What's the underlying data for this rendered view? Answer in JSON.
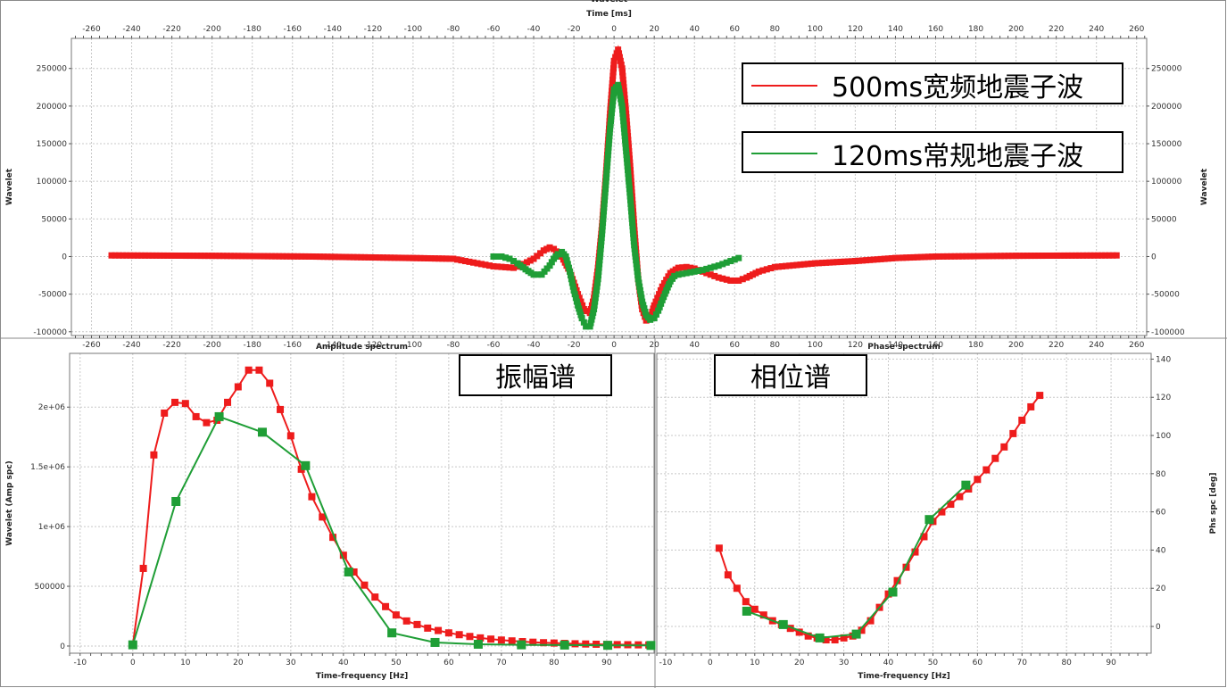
{
  "colors": {
    "red": "#ee1c1c",
    "green": "#1f9e36",
    "grid": "#c8c8c8",
    "frame": "#8a8a8a"
  },
  "chart_data": [
    {
      "type": "line",
      "title": "Wavelet",
      "xlabel": "Time [ms]",
      "ylabel": "Wavelet",
      "ylabel_right": "Wavelet",
      "xlim": [
        -270,
        265
      ],
      "ylim": [
        -105000,
        290000
      ],
      "xticks": [
        -260,
        -240,
        -220,
        -200,
        -180,
        -160,
        -140,
        -120,
        -100,
        -80,
        -60,
        -40,
        -20,
        0,
        20,
        40,
        60,
        80,
        100,
        120,
        140,
        160,
        180,
        200,
        220,
        240,
        260
      ],
      "yticks": [
        -100000,
        -50000,
        0,
        50000,
        100000,
        150000,
        200000,
        250000
      ],
      "grid": true,
      "legend_position": "top-right",
      "legend": [
        "500ms宽频地震子波",
        "120ms常规地震子波"
      ],
      "series": [
        {
          "name": "500ms宽频地震子波",
          "color": "red",
          "points": [
            [
              -250,
              1500
            ],
            [
              -200,
              1000
            ],
            [
              -150,
              0
            ],
            [
              -100,
              -2000
            ],
            [
              -80,
              -3000
            ],
            [
              -70,
              -8000
            ],
            [
              -60,
              -13000
            ],
            [
              -50,
              -15000
            ],
            [
              -45,
              -10000
            ],
            [
              -40,
              -3000
            ],
            [
              -35,
              8000
            ],
            [
              -32,
              12000
            ],
            [
              -30,
              10000
            ],
            [
              -26,
              0
            ],
            [
              -22,
              -20000
            ],
            [
              -18,
              -50000
            ],
            [
              -15,
              -70000
            ],
            [
              -12,
              -75000
            ],
            [
              -10,
              -55000
            ],
            [
              -8,
              -15000
            ],
            [
              -6,
              40000
            ],
            [
              -4,
              110000
            ],
            [
              -2,
              190000
            ],
            [
              0,
              260000
            ],
            [
              2,
              275000
            ],
            [
              4,
              250000
            ],
            [
              6,
              190000
            ],
            [
              8,
              120000
            ],
            [
              10,
              40000
            ],
            [
              12,
              -30000
            ],
            [
              14,
              -70000
            ],
            [
              16,
              -85000
            ],
            [
              18,
              -82000
            ],
            [
              20,
              -65000
            ],
            [
              24,
              -40000
            ],
            [
              28,
              -22000
            ],
            [
              32,
              -15000
            ],
            [
              36,
              -14000
            ],
            [
              40,
              -16000
            ],
            [
              46,
              -22000
            ],
            [
              52,
              -28000
            ],
            [
              58,
              -32000
            ],
            [
              62,
              -32000
            ],
            [
              66,
              -28000
            ],
            [
              72,
              -20000
            ],
            [
              80,
              -14000
            ],
            [
              100,
              -9000
            ],
            [
              120,
              -6000
            ],
            [
              140,
              -2000
            ],
            [
              160,
              0
            ],
            [
              200,
              1000
            ],
            [
              250,
              1500
            ]
          ]
        },
        {
          "name": "120ms常规地震子波",
          "color": "green",
          "points": [
            [
              -60,
              0
            ],
            [
              -56,
              0
            ],
            [
              -52,
              -3000
            ],
            [
              -48,
              -9000
            ],
            [
              -44,
              -17000
            ],
            [
              -40,
              -24000
            ],
            [
              -36,
              -24000
            ],
            [
              -32,
              -12000
            ],
            [
              -30,
              -3000
            ],
            [
              -28,
              3000
            ],
            [
              -26,
              6000
            ],
            [
              -24,
              0
            ],
            [
              -22,
              -20000
            ],
            [
              -20,
              -45000
            ],
            [
              -18,
              -65000
            ],
            [
              -16,
              -82000
            ],
            [
              -14,
              -93000
            ],
            [
              -12,
              -93000
            ],
            [
              -10,
              -70000
            ],
            [
              -8,
              -30000
            ],
            [
              -6,
              30000
            ],
            [
              -4,
              100000
            ],
            [
              -2,
              170000
            ],
            [
              0,
              222000
            ],
            [
              2,
              228000
            ],
            [
              4,
              200000
            ],
            [
              6,
              140000
            ],
            [
              8,
              80000
            ],
            [
              10,
              15000
            ],
            [
              12,
              -30000
            ],
            [
              14,
              -60000
            ],
            [
              16,
              -78000
            ],
            [
              18,
              -84000
            ],
            [
              20,
              -82000
            ],
            [
              22,
              -72000
            ],
            [
              24,
              -58000
            ],
            [
              26,
              -45000
            ],
            [
              28,
              -33000
            ],
            [
              30,
              -26000
            ],
            [
              32,
              -24000
            ],
            [
              36,
              -22000
            ],
            [
              40,
              -20000
            ],
            [
              44,
              -18000
            ],
            [
              48,
              -15000
            ],
            [
              52,
              -12000
            ],
            [
              56,
              -8000
            ],
            [
              60,
              -4000
            ],
            [
              62,
              -2000
            ]
          ]
        }
      ]
    },
    {
      "type": "line",
      "title": "Amplitude spectrum",
      "xlabel": "Time-frequency [Hz]",
      "ylabel": "Wavelet (Amp spc)",
      "xlim": [
        -12,
        99
      ],
      "ylim": [
        -60000,
        2450000
      ],
      "xticks": [
        -10,
        0,
        10,
        20,
        30,
        40,
        50,
        60,
        70,
        80,
        90
      ],
      "yticks": [
        0,
        500000,
        1000000,
        1500000,
        2000000
      ],
      "ytick_labels": [
        "0",
        "500000",
        "1e+06",
        "1.5e+06",
        "2e+06"
      ],
      "grid": true,
      "annotation": "振幅谱",
      "series": [
        {
          "name": "500ms宽频地震子波",
          "color": "red",
          "x": [
            0,
            2,
            4,
            6,
            8,
            10,
            12,
            14,
            16,
            18,
            20,
            22,
            24,
            26,
            28,
            30,
            32,
            34,
            36,
            38,
            40,
            42,
            44,
            46,
            48,
            50,
            52,
            54,
            56,
            58,
            60,
            62,
            64,
            66,
            68,
            70,
            72,
            74,
            76,
            78,
            80,
            82,
            84,
            86,
            88,
            90,
            92,
            94,
            96,
            98
          ],
          "y": [
            10000,
            650000,
            1600000,
            1950000,
            2040000,
            2030000,
            1920000,
            1870000,
            1890000,
            2040000,
            2170000,
            2310000,
            2310000,
            2200000,
            1980000,
            1760000,
            1480000,
            1250000,
            1080000,
            910000,
            760000,
            620000,
            510000,
            410000,
            330000,
            260000,
            210000,
            180000,
            150000,
            130000,
            110000,
            95000,
            80000,
            68000,
            58000,
            50000,
            43000,
            37000,
            32000,
            28000,
            25000,
            22000,
            19000,
            17000,
            15000,
            13000,
            12000,
            11000,
            10000,
            9000
          ]
        },
        {
          "name": "120ms常规地震子波",
          "color": "green",
          "x": [
            0,
            8.2,
            16.4,
            24.6,
            32.8,
            41,
            49.2,
            57.4,
            65.6,
            73.8,
            82,
            90.2,
            98.4
          ],
          "y": [
            10000,
            1210000,
            1920000,
            1790000,
            1510000,
            620000,
            110000,
            30000,
            15000,
            10000,
            8000,
            6000,
            5000
          ]
        }
      ]
    },
    {
      "type": "line",
      "title": "Phase spectrum",
      "xlabel": "Time-frequency [Hz]",
      "ylabel": "Phs spc [deg]",
      "xlim": [
        -12,
        99
      ],
      "ylim": [
        -14,
        143
      ],
      "xticks": [
        -10,
        0,
        10,
        20,
        30,
        40,
        50,
        60,
        70,
        80,
        90
      ],
      "yticks": [
        0,
        20,
        40,
        60,
        80,
        100,
        120,
        140
      ],
      "grid": true,
      "annotation": "相位谱",
      "series": [
        {
          "name": "500ms宽频地震子波",
          "color": "red",
          "x": [
            2,
            4,
            6,
            8,
            10,
            12,
            14,
            16,
            18,
            20,
            22,
            24,
            26,
            28,
            30,
            32,
            34,
            36,
            38,
            40,
            42,
            44,
            46,
            48,
            50,
            52,
            54,
            56,
            58,
            60,
            62,
            64,
            66,
            68,
            70,
            72,
            74
          ],
          "y": [
            41,
            27,
            20,
            13,
            9,
            6,
            3,
            1,
            -1,
            -3,
            -5,
            -6,
            -7,
            -7,
            -6,
            -5,
            -2,
            3,
            10,
            17,
            24,
            31,
            39,
            47,
            55,
            60,
            64,
            68,
            72,
            77,
            82,
            88,
            94,
            101,
            108,
            115,
            121
          ]
        },
        {
          "name": "120ms常规地震子波",
          "color": "green",
          "x": [
            8.2,
            16.4,
            24.6,
            32.8,
            41,
            49.2,
            57.4
          ],
          "y": [
            8,
            1,
            -6,
            -4,
            18,
            56,
            74
          ]
        }
      ]
    }
  ]
}
